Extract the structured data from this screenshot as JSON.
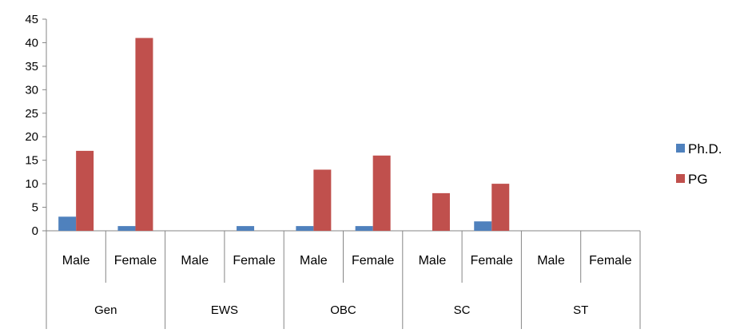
{
  "chart_data": {
    "type": "bar",
    "groups": [
      {
        "label": "Gen",
        "subcategories": [
          "Male",
          "Female"
        ]
      },
      {
        "label": "EWS",
        "subcategories": [
          "Male",
          "Female"
        ]
      },
      {
        "label": "OBC",
        "subcategories": [
          "Male",
          "Female"
        ]
      },
      {
        "label": "SC",
        "subcategories": [
          "Male",
          "Female"
        ]
      },
      {
        "label": "ST",
        "subcategories": [
          "Male",
          "Female"
        ]
      }
    ],
    "series": [
      {
        "name": "Ph.D.",
        "color": "#4F81BD",
        "values": [
          3,
          1,
          0,
          1,
          1,
          1,
          0,
          2,
          0,
          0
        ]
      },
      {
        "name": "PG",
        "color": "#C0504D",
        "values": [
          17,
          41,
          0,
          0,
          13,
          16,
          8,
          10,
          0,
          0
        ]
      }
    ],
    "ylim": [
      0,
      45
    ],
    "yticks": [
      0,
      5,
      10,
      15,
      20,
      25,
      30,
      35,
      40,
      45
    ],
    "grid": false,
    "legend_position": "right"
  }
}
